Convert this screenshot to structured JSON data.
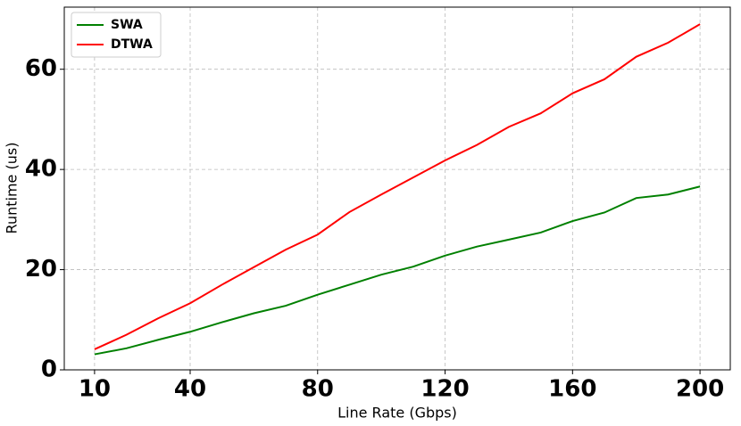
{
  "chart_data": {
    "type": "line",
    "xlabel": "Line Rate (Gbps)",
    "ylabel": "Runtime (us)",
    "x": [
      10,
      20,
      30,
      40,
      50,
      60,
      70,
      80,
      90,
      100,
      110,
      120,
      130,
      140,
      150,
      160,
      170,
      180,
      190,
      200
    ],
    "series": [
      {
        "name": "SWA",
        "color": "#008000",
        "values": [
          3.1,
          4.3,
          6.0,
          7.6,
          9.5,
          11.3,
          12.8,
          15.0,
          17.0,
          19.0,
          20.6,
          22.8,
          24.6,
          26.0,
          27.4,
          29.7,
          31.4,
          34.3,
          35.0,
          36.6
        ]
      },
      {
        "name": "DTWA",
        "color": "#ff0000",
        "values": [
          4.1,
          7.0,
          10.3,
          13.3,
          17.0,
          20.5,
          24.0,
          27.0,
          31.5,
          35.0,
          38.4,
          41.8,
          44.9,
          48.5,
          51.2,
          55.2,
          58.0,
          62.5,
          65.3,
          69.0
        ]
      }
    ],
    "xlim": [
      0.5,
      209.5
    ],
    "xticks": [
      10,
      40,
      80,
      120,
      160,
      200
    ],
    "ylim": [
      0,
      72.4
    ],
    "yticks": [
      0,
      20,
      40,
      60
    ],
    "grid": true,
    "legend": "upper left"
  }
}
